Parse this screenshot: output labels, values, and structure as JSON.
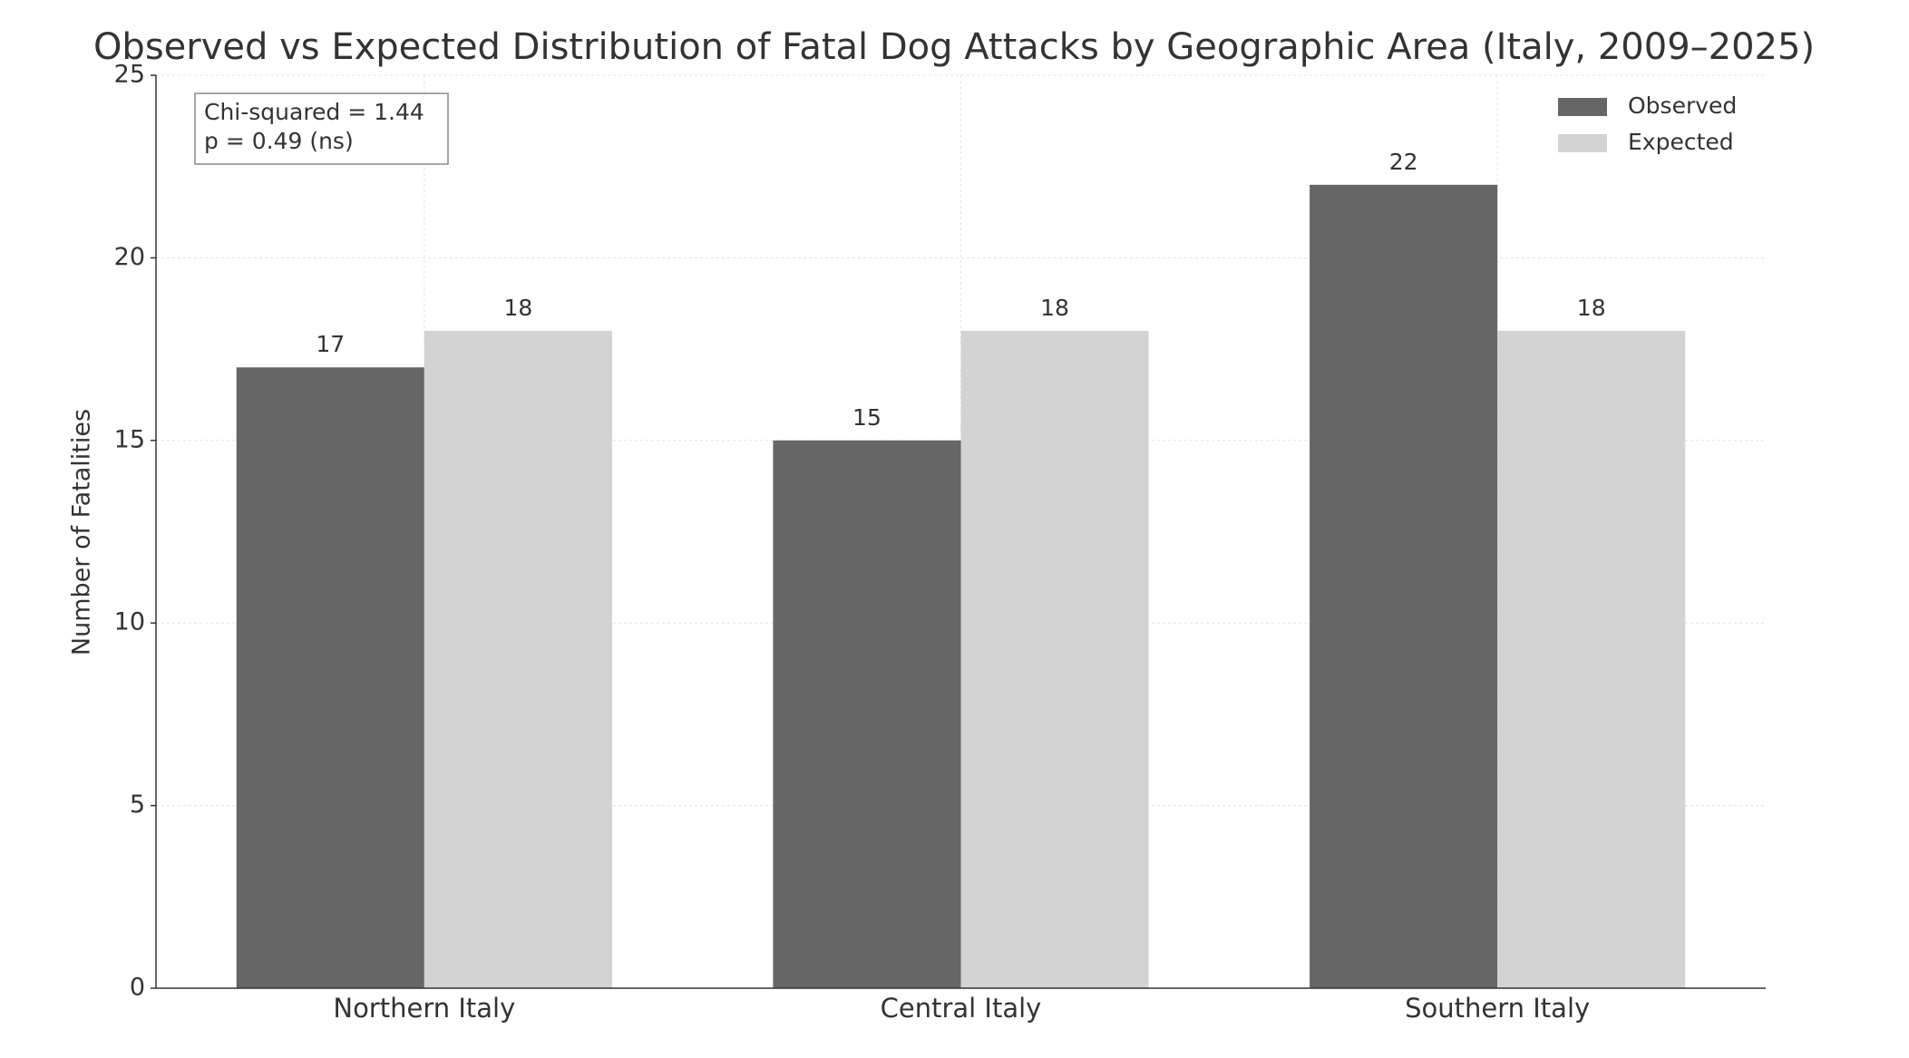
{
  "chart_data": {
    "type": "bar",
    "title": "Observed vs Expected Distribution of Fatal Dog Attacks by Geographic Area (Italy, 2009–2025)",
    "y_label": "Number of Fatalities",
    "categories": [
      "Northern Italy",
      "Central Italy",
      "Southern Italy"
    ],
    "series": [
      {
        "name": "Observed",
        "color": "#666666",
        "values": [
          17,
          15,
          22
        ]
      },
      {
        "name": "Expected",
        "color": "#d3d3d3",
        "values": [
          18,
          18,
          18
        ]
      }
    ],
    "ylim": [
      0,
      25
    ],
    "yticks": [
      0,
      5,
      10,
      15,
      20,
      25
    ],
    "grid": true,
    "legend": "upper right",
    "annotation": [
      "Chi-squared = 1.44",
      "p = 0.49 (ns)"
    ]
  }
}
